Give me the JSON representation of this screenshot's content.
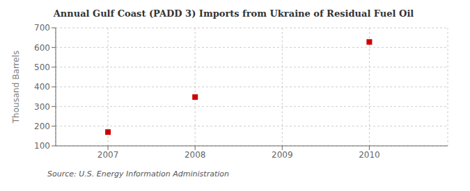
{
  "chart_data": {
    "type": "scatter",
    "title": "Annual Gulf Coast (PADD 3) Imports from Ukraine of Residual Fuel Oil",
    "ylabel": "Thousand Barrels",
    "annotations": [
      "Source: U.S. Energy Information Administration"
    ],
    "x": [
      2007,
      2008,
      2010
    ],
    "values": [
      170,
      348,
      628
    ],
    "xlim": [
      2006.4,
      2010.9
    ],
    "ylim": [
      100,
      700
    ],
    "xticks": [
      2007,
      2008,
      2009,
      2010
    ],
    "yticks": [
      100,
      200,
      300,
      400,
      500,
      600,
      700
    ],
    "grid": true,
    "color": "#cc0000",
    "marker": "square"
  }
}
